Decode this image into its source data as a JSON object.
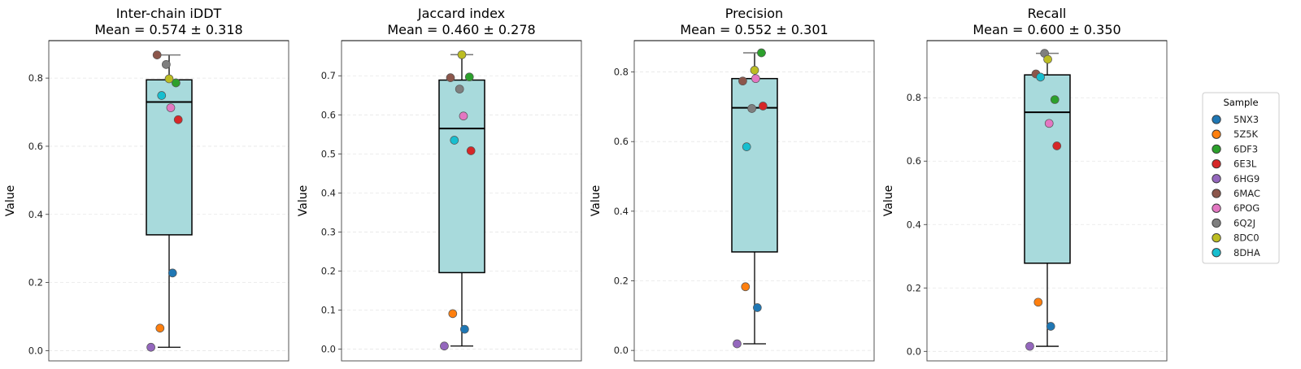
{
  "chart_data": {
    "type": "box",
    "layout": "1x4 panels with shared legend at right",
    "legend": {
      "title": "Sample",
      "placement": "right",
      "entries": [
        {
          "name": "5NX3",
          "color": "#1f77b4"
        },
        {
          "name": "5Z5K",
          "color": "#ff7f0e"
        },
        {
          "name": "6DF3",
          "color": "#2ca02c"
        },
        {
          "name": "6E3L",
          "color": "#d62728"
        },
        {
          "name": "6HG9",
          "color": "#9467bd"
        },
        {
          "name": "6MAC",
          "color": "#8c564b"
        },
        {
          "name": "6POG",
          "color": "#e377c2"
        },
        {
          "name": "6Q2J",
          "color": "#7f7f7f"
        },
        {
          "name": "8DC0",
          "color": "#bcbd22"
        },
        {
          "name": "8DHA",
          "color": "#17becf"
        }
      ]
    },
    "box_color": "#a8dadc",
    "panels": [
      {
        "title": "Inter-chain iDDT",
        "subtitle": "Mean = 0.574 ± 0.318",
        "ylabel": "Value",
        "ylim": [
          -0.03,
          0.91
        ],
        "yticks": [
          0.0,
          0.2,
          0.4,
          0.6,
          0.8
        ],
        "ytick_labels": [
          "0.0",
          "0.2",
          "0.4",
          "0.6",
          "0.8"
        ],
        "grid": "horizontal dashed light",
        "box": {
          "whisker_low": 0.01,
          "q1": 0.34,
          "median": 0.73,
          "q3": 0.795,
          "whisker_high": 0.868
        },
        "points": [
          {
            "sample": "5NX3",
            "value": 0.228,
            "jitter": 0.15
          },
          {
            "sample": "5Z5K",
            "value": 0.066,
            "jitter": -0.4
          },
          {
            "sample": "6DF3",
            "value": 0.786,
            "jitter": 0.3
          },
          {
            "sample": "6E3L",
            "value": 0.678,
            "jitter": 0.4
          },
          {
            "sample": "6HG9",
            "value": 0.01,
            "jitter": -0.8
          },
          {
            "sample": "6MAC",
            "value": 0.868,
            "jitter": -0.53
          },
          {
            "sample": "6POG",
            "value": 0.713,
            "jitter": 0.07
          },
          {
            "sample": "6Q2J",
            "value": 0.84,
            "jitter": -0.13
          },
          {
            "sample": "8DC0",
            "value": 0.798,
            "jitter": 0.0
          },
          {
            "sample": "8DHA",
            "value": 0.749,
            "jitter": -0.33
          }
        ]
      },
      {
        "title": "Jaccard index",
        "subtitle": "Mean = 0.460 ± 0.278",
        "ylabel": "Value",
        "ylim": [
          -0.03,
          0.79
        ],
        "yticks": [
          0.0,
          0.1,
          0.2,
          0.3,
          0.4,
          0.5,
          0.6,
          0.7
        ],
        "ytick_labels": [
          "0.0",
          "0.1",
          "0.2",
          "0.3",
          "0.4",
          "0.5",
          "0.6",
          "0.7"
        ],
        "grid": "horizontal dashed light",
        "box": {
          "whisker_low": 0.008,
          "q1": 0.196,
          "median": 0.565,
          "q3": 0.689,
          "whisker_high": 0.754
        },
        "points": [
          {
            "sample": "5NX3",
            "value": 0.051,
            "jitter": 0.12
          },
          {
            "sample": "5Z5K",
            "value": 0.091,
            "jitter": -0.4
          },
          {
            "sample": "6DF3",
            "value": 0.697,
            "jitter": 0.33
          },
          {
            "sample": "6E3L",
            "value": 0.508,
            "jitter": 0.4
          },
          {
            "sample": "6HG9",
            "value": 0.008,
            "jitter": -0.77
          },
          {
            "sample": "6MAC",
            "value": 0.695,
            "jitter": -0.5
          },
          {
            "sample": "6POG",
            "value": 0.597,
            "jitter": 0.07
          },
          {
            "sample": "6Q2J",
            "value": 0.666,
            "jitter": -0.1
          },
          {
            "sample": "8DC0",
            "value": 0.754,
            "jitter": 0.0
          },
          {
            "sample": "8DHA",
            "value": 0.535,
            "jitter": -0.33
          }
        ]
      },
      {
        "title": "Precision",
        "subtitle": "Mean = 0.552 ± 0.301",
        "ylabel": "Value",
        "ylim": [
          -0.03,
          0.89
        ],
        "yticks": [
          0.0,
          0.2,
          0.4,
          0.6,
          0.8
        ],
        "ytick_labels": [
          "0.0",
          "0.2",
          "0.4",
          "0.6",
          "0.8"
        ],
        "grid": "horizontal dashed light",
        "box": {
          "whisker_low": 0.019,
          "q1": 0.283,
          "median": 0.697,
          "q3": 0.781,
          "whisker_high": 0.855
        },
        "points": [
          {
            "sample": "5NX3",
            "value": 0.123,
            "jitter": 0.12
          },
          {
            "sample": "5Z5K",
            "value": 0.183,
            "jitter": -0.4
          },
          {
            "sample": "6DF3",
            "value": 0.855,
            "jitter": 0.3
          },
          {
            "sample": "6E3L",
            "value": 0.702,
            "jitter": 0.37
          },
          {
            "sample": "6HG9",
            "value": 0.019,
            "jitter": -0.77
          },
          {
            "sample": "6MAC",
            "value": 0.774,
            "jitter": -0.52
          },
          {
            "sample": "6POG",
            "value": 0.781,
            "jitter": 0.05
          },
          {
            "sample": "6Q2J",
            "value": 0.695,
            "jitter": -0.12
          },
          {
            "sample": "8DC0",
            "value": 0.805,
            "jitter": 0.0
          },
          {
            "sample": "8DHA",
            "value": 0.585,
            "jitter": -0.35
          }
        ]
      },
      {
        "title": "Recall",
        "subtitle": "Mean = 0.600 ± 0.350",
        "ylabel": "Value",
        "ylim": [
          -0.03,
          0.98
        ],
        "yticks": [
          0.0,
          0.2,
          0.4,
          0.6,
          0.8
        ],
        "ytick_labels": [
          "0.0",
          "0.2",
          "0.4",
          "0.6",
          "0.8"
        ],
        "grid": "horizontal dashed light",
        "box": {
          "whisker_low": 0.016,
          "q1": 0.278,
          "median": 0.754,
          "q3": 0.872,
          "whisker_high": 0.94
        },
        "points": [
          {
            "sample": "5NX3",
            "value": 0.079,
            "jitter": 0.15
          },
          {
            "sample": "5Z5K",
            "value": 0.155,
            "jitter": -0.4
          },
          {
            "sample": "6DF3",
            "value": 0.794,
            "jitter": 0.33
          },
          {
            "sample": "6E3L",
            "value": 0.648,
            "jitter": 0.42
          },
          {
            "sample": "6HG9",
            "value": 0.016,
            "jitter": -0.77
          },
          {
            "sample": "6MAC",
            "value": 0.875,
            "jitter": -0.5
          },
          {
            "sample": "6POG",
            "value": 0.719,
            "jitter": 0.08
          },
          {
            "sample": "6Q2J",
            "value": 0.94,
            "jitter": -0.12
          },
          {
            "sample": "8DC0",
            "value": 0.921,
            "jitter": 0.02
          },
          {
            "sample": "8DHA",
            "value": 0.865,
            "jitter": -0.3
          }
        ]
      }
    ]
  }
}
